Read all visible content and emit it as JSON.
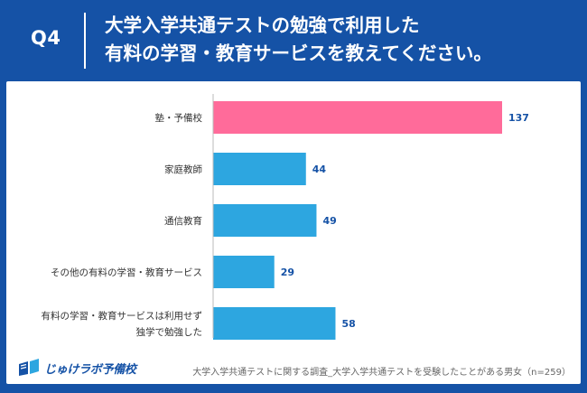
{
  "header": {
    "question_label": "Q4",
    "title_lines": [
      "大学入学共通テストの勉強で利用した",
      "有料の学習・教育サービスを教えてください。"
    ]
  },
  "chart_data": {
    "type": "bar",
    "orientation": "horizontal",
    "categories": [
      [
        "塾・予備校"
      ],
      [
        "家庭教師"
      ],
      [
        "通信教育"
      ],
      [
        "その他の有料の学習・教育サービス"
      ],
      [
        "有料の学習・教育サービスは利用せず",
        "独学で勉強した"
      ]
    ],
    "values": [
      137,
      44,
      49,
      29,
      58
    ],
    "bar_colors": [
      "#ff6b9a",
      "#2da6e0",
      "#2da6e0",
      "#2da6e0",
      "#2da6e0"
    ],
    "value_label_color": "#1552a6",
    "xlim": [
      0,
      150
    ],
    "grid": false,
    "legend": "none"
  },
  "footer": {
    "logo_text": "じゅけラボ予備校",
    "note": "大学入学共通テストに関する調査_大学入学共通テストを受験したことがある男女（n=259）"
  },
  "colors": {
    "header_bg": "#1552a6",
    "card_bg": "#ffffff",
    "axis_line": "#bbbbbb"
  }
}
